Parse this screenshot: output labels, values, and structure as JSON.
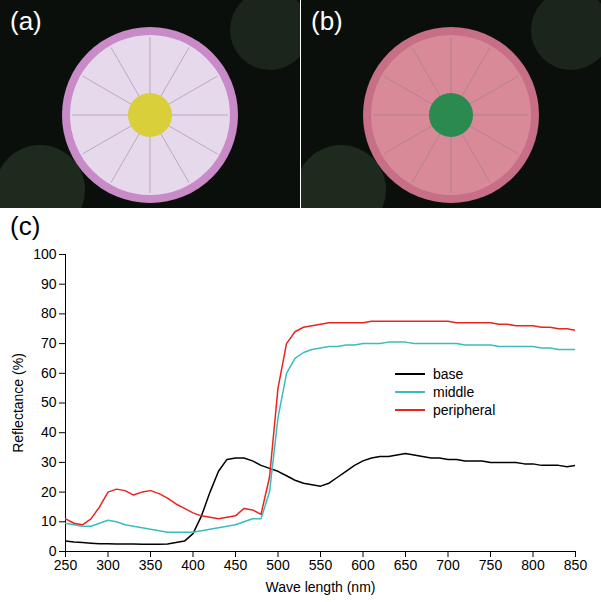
{
  "panels": [
    {
      "label": "(a)"
    },
    {
      "label": "(b)"
    }
  ],
  "chart_data": {
    "panel_label": "(c)",
    "type": "line",
    "x_label": "Wave length (nm)",
    "y_label": "Reflectance (%)",
    "x": [
      250,
      260,
      270,
      280,
      290,
      300,
      310,
      320,
      330,
      340,
      350,
      360,
      370,
      380,
      390,
      400,
      410,
      420,
      430,
      440,
      450,
      460,
      470,
      480,
      490,
      500,
      510,
      520,
      530,
      540,
      550,
      560,
      570,
      580,
      590,
      600,
      610,
      620,
      630,
      640,
      650,
      660,
      670,
      680,
      690,
      700,
      710,
      720,
      730,
      740,
      750,
      760,
      770,
      780,
      790,
      800,
      810,
      820,
      830,
      840,
      850
    ],
    "series": [
      {
        "name": "base",
        "color": "#000000",
        "values": [
          3.5,
          3.2,
          3.0,
          2.8,
          2.6,
          2.6,
          2.5,
          2.5,
          2.5,
          2.4,
          2.4,
          2.4,
          2.5,
          3.0,
          3.5,
          6,
          12,
          20,
          27,
          31,
          31.5,
          31.5,
          30.5,
          29,
          28,
          27,
          25.5,
          24,
          23,
          22.5,
          22,
          23,
          25,
          27,
          29,
          30.5,
          31.5,
          32,
          32,
          32.5,
          33,
          32.5,
          32,
          31.5,
          31.5,
          31,
          31,
          30.5,
          30.5,
          30.5,
          30,
          30,
          30,
          30,
          29.5,
          29.5,
          29,
          29,
          29,
          28.5,
          29
        ]
      },
      {
        "name": "middle",
        "color": "#3cbcbc",
        "values": [
          9.5,
          9,
          8.5,
          8.5,
          9.5,
          10.5,
          10,
          9,
          8.5,
          8,
          7.5,
          7,
          6.5,
          6.5,
          6.5,
          6.5,
          7,
          7.5,
          8,
          8.5,
          9,
          10,
          11,
          11,
          20,
          45,
          60,
          65,
          67,
          68,
          68.5,
          69,
          69,
          69.5,
          69.5,
          70,
          70,
          70,
          70.5,
          70.5,
          70.5,
          70,
          70,
          70,
          70,
          70,
          70,
          69.5,
          69.5,
          69.5,
          69.5,
          69,
          69,
          69,
          69,
          69,
          68.5,
          68.5,
          68,
          68,
          68
        ]
      },
      {
        "name": "peripheral",
        "color": "#e8251f",
        "values": [
          11,
          9.5,
          9,
          11,
          15,
          20,
          21,
          20.5,
          19,
          20,
          20.5,
          19.5,
          18,
          16,
          14.5,
          13,
          12,
          11.5,
          11,
          11.5,
          12,
          14.5,
          14,
          12.5,
          25,
          55,
          70,
          74,
          75.5,
          76,
          76.5,
          77,
          77,
          77,
          77,
          77,
          77.5,
          77.5,
          77.5,
          77.5,
          77.5,
          77.5,
          77.5,
          77.5,
          77.5,
          77.5,
          77,
          77,
          77,
          77,
          77,
          76.5,
          76.5,
          76,
          76,
          76,
          75.5,
          75.5,
          75,
          75,
          74.5
        ]
      }
    ],
    "xlim": [
      250,
      850
    ],
    "xticks": [
      250,
      300,
      350,
      400,
      450,
      500,
      550,
      600,
      650,
      700,
      750,
      800,
      850
    ],
    "ylim": [
      0,
      100
    ],
    "yticks": [
      0,
      10,
      20,
      30,
      40,
      50,
      60,
      70,
      80,
      90,
      100
    ],
    "legend": "right"
  }
}
